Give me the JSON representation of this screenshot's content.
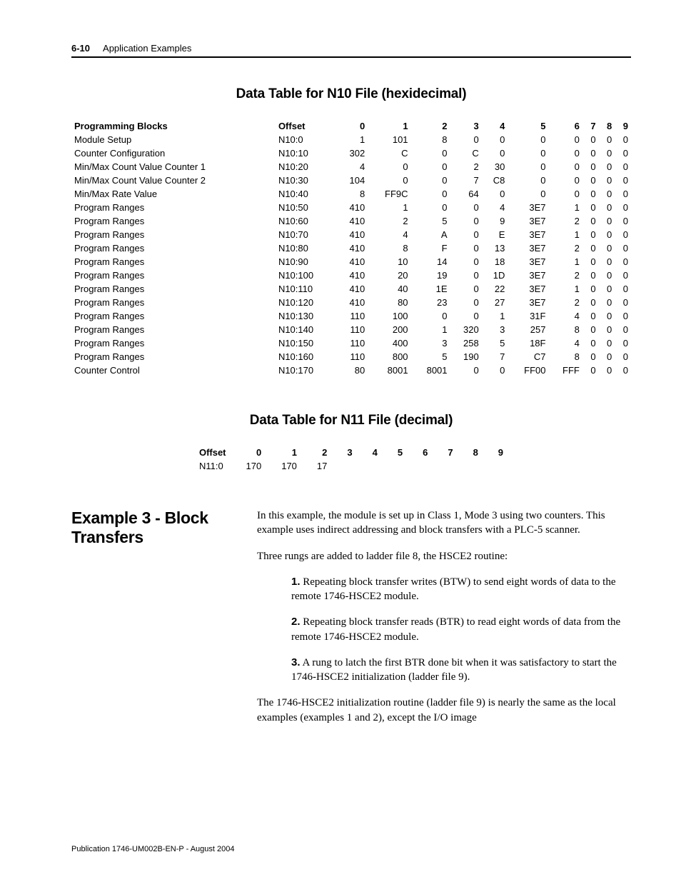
{
  "header": {
    "page_number": "6-10",
    "chapter": "Application Examples"
  },
  "table1": {
    "title": "Data Table for N10 File (hexidecimal)",
    "columns": [
      "Programming Blocks",
      "Offset",
      "0",
      "1",
      "2",
      "3",
      "4",
      "5",
      "6",
      "7",
      "8",
      "9"
    ],
    "rows": [
      [
        "Module Setup",
        "N10:0",
        "1",
        "101",
        "8",
        "0",
        "0",
        "0",
        "0",
        "0",
        "0",
        "0"
      ],
      [
        "Counter Configuration",
        "N10:10",
        "302",
        "C",
        "0",
        "C",
        "0",
        "0",
        "0",
        "0",
        "0",
        "0"
      ],
      [
        "Min/Max Count Value Counter 1",
        "N10:20",
        "4",
        "0",
        "0",
        "2",
        "30",
        "0",
        "0",
        "0",
        "0",
        "0"
      ],
      [
        "Min/Max Count Value Counter 2",
        "N10:30",
        "104",
        "0",
        "0",
        "7",
        "C8",
        "0",
        "0",
        "0",
        "0",
        "0"
      ],
      [
        "Min/Max Rate Value",
        "N10:40",
        "8",
        "FF9C",
        "0",
        "64",
        "0",
        "0",
        "0",
        "0",
        "0",
        "0"
      ],
      [
        "Program Ranges",
        "N10:50",
        "410",
        "1",
        "0",
        "0",
        "4",
        "3E7",
        "1",
        "0",
        "0",
        "0"
      ],
      [
        "Program Ranges",
        "N10:60",
        "410",
        "2",
        "5",
        "0",
        "9",
        "3E7",
        "2",
        "0",
        "0",
        "0"
      ],
      [
        "Program Ranges",
        "N10:70",
        "410",
        "4",
        "A",
        "0",
        "E",
        "3E7",
        "1",
        "0",
        "0",
        "0"
      ],
      [
        "Program Ranges",
        "N10:80",
        "410",
        "8",
        "F",
        "0",
        "13",
        "3E7",
        "2",
        "0",
        "0",
        "0"
      ],
      [
        "Program Ranges",
        "N10:90",
        "410",
        "10",
        "14",
        "0",
        "18",
        "3E7",
        "1",
        "0",
        "0",
        "0"
      ],
      [
        "Program Ranges",
        "N10:100",
        "410",
        "20",
        "19",
        "0",
        "1D",
        "3E7",
        "2",
        "0",
        "0",
        "0"
      ],
      [
        "Program Ranges",
        "N10:110",
        "410",
        "40",
        "1E",
        "0",
        "22",
        "3E7",
        "1",
        "0",
        "0",
        "0"
      ],
      [
        "Program Ranges",
        "N10:120",
        "410",
        "80",
        "23",
        "0",
        "27",
        "3E7",
        "2",
        "0",
        "0",
        "0"
      ],
      [
        "Program Ranges",
        "N10:130",
        "110",
        "100",
        "0",
        "0",
        "1",
        "31F",
        "4",
        "0",
        "0",
        "0"
      ],
      [
        "Program Ranges",
        "N10:140",
        "110",
        "200",
        "1",
        "320",
        "3",
        "257",
        "8",
        "0",
        "0",
        "0"
      ],
      [
        "Program Ranges",
        "N10:150",
        "110",
        "400",
        "3",
        "258",
        "5",
        "18F",
        "4",
        "0",
        "0",
        "0"
      ],
      [
        "Program Ranges",
        "N10:160",
        "110",
        "800",
        "5",
        "190",
        "7",
        "C7",
        "8",
        "0",
        "0",
        "0"
      ],
      [
        "Counter Control",
        "N10:170",
        "80",
        "8001",
        "8001",
        "0",
        "0",
        "FF00",
        "FFF",
        "0",
        "0",
        "0"
      ]
    ]
  },
  "table2": {
    "title": "Data Table for N11 File (decimal)",
    "columns": [
      "Offset",
      "0",
      "1",
      "2",
      "3",
      "4",
      "5",
      "6",
      "7",
      "8",
      "9"
    ],
    "rows": [
      [
        "N11:0",
        "170",
        "170",
        "17",
        "",
        "",
        "",
        "",
        "",
        "",
        ""
      ]
    ]
  },
  "section": {
    "title": "Example 3 - Block Transfers",
    "p1": "In this example, the module is set up in Class 1, Mode 3 using two counters. This example uses indirect addressing and block transfers with a PLC-5 scanner.",
    "p2": "Three rungs are added to ladder file 8, the HSCE2 routine:",
    "li1": "Repeating block transfer writes (BTW) to send eight words of data to the remote 1746-HSCE2 module.",
    "li2": "Repeating block transfer reads (BTR) to read eight words of data from the remote 1746-HSCE2 module.",
    "li3": "A rung to latch the first BTR done bit when it was satisfactory to start the 1746-HSCE2 initialization (ladder file 9).",
    "p3": "The 1746-HSCE2 initialization routine (ladder file 9) is nearly the same as the local examples (examples 1 and 2), except the I/O image"
  },
  "list_markers": {
    "n1": "1.",
    "n2": "2.",
    "n3": "3."
  },
  "footer": "Publication 1746-UM002B-EN-P - August 2004"
}
